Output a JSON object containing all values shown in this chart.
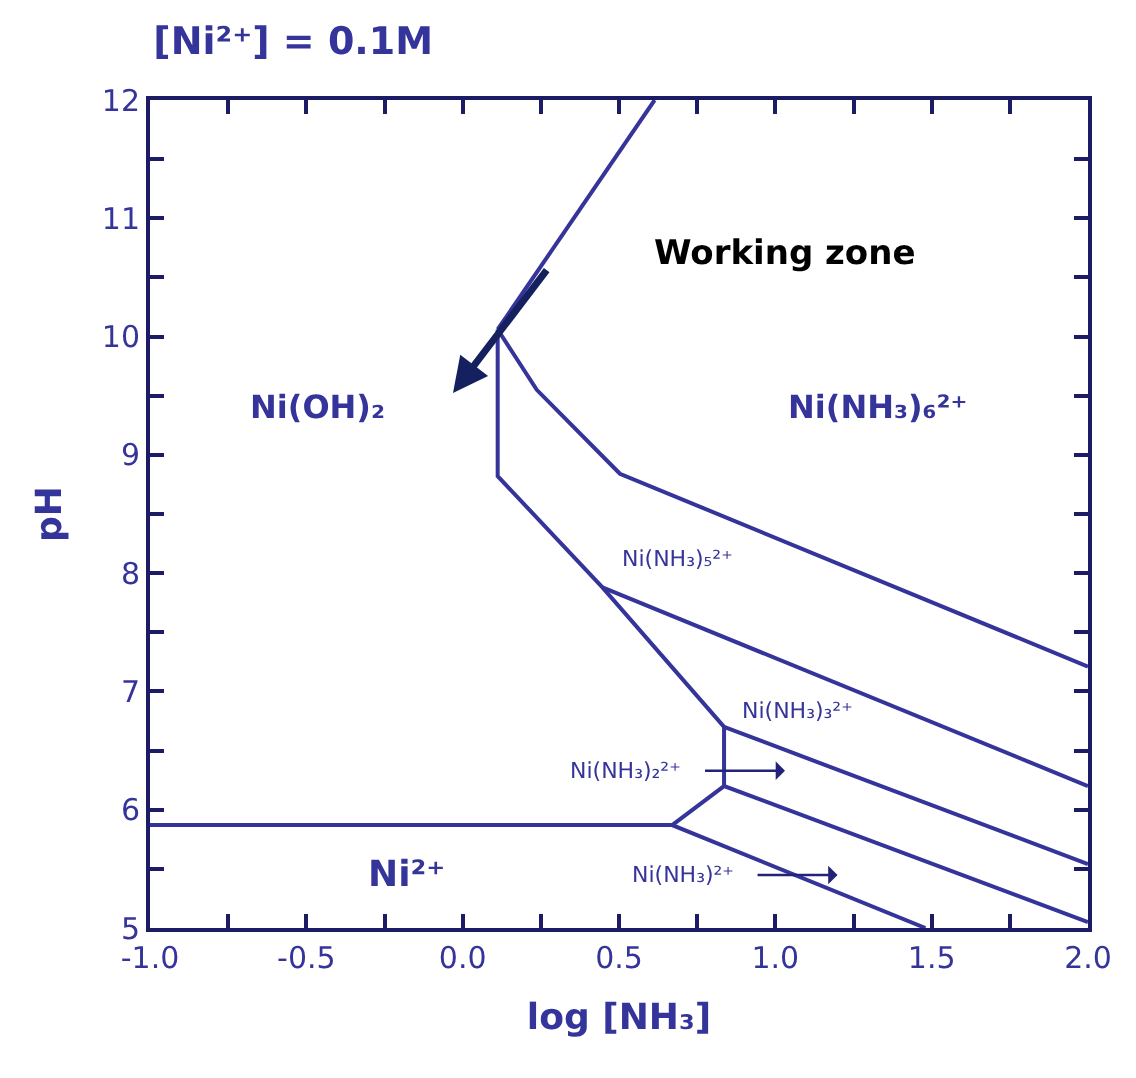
{
  "chart_data": {
    "type": "line",
    "title": "[Ni²⁺] = 0.1M",
    "xlabel": "log [NH₃]",
    "ylabel": "pH",
    "xlim": [
      -1,
      2
    ],
    "ylim": [
      5,
      12
    ],
    "xticks": [
      {
        "value": -1,
        "label": "-1.0"
      },
      {
        "value": -0.75,
        "label": null
      },
      {
        "value": -0.5,
        "label": "-0.5"
      },
      {
        "value": -0.25,
        "label": null
      },
      {
        "value": 0,
        "label": "0.0"
      },
      {
        "value": 0.25,
        "label": null
      },
      {
        "value": 0.5,
        "label": "0.5"
      },
      {
        "value": 0.75,
        "label": null
      },
      {
        "value": 1,
        "label": "1.0"
      },
      {
        "value": 1.25,
        "label": null
      },
      {
        "value": 1.5,
        "label": "1.5"
      },
      {
        "value": 1.75,
        "label": null
      },
      {
        "value": 2,
        "label": "2.0"
      }
    ],
    "yticks": [
      5,
      {
        "value": 5.5,
        "label": null
      },
      6,
      {
        "value": 6.5,
        "label": null
      },
      7,
      {
        "value": 7.5,
        "label": null
      },
      8,
      {
        "value": 8.5,
        "label": null
      },
      9,
      {
        "value": 9.5,
        "label": null
      },
      10,
      {
        "value": 10.5,
        "label": null
      },
      11,
      {
        "value": 11.5,
        "label": null
      },
      12
    ],
    "legend": false,
    "marker": "none",
    "line_style": "solid",
    "series": [
      {
        "color": "#34349a",
        "x": [
          -1,
          0.67,
          1.48
        ],
        "values": [
          5.87,
          5.87,
          5.0
        ]
      },
      {
        "color": "#34349a",
        "x": [
          0.67,
          0.836,
          2
        ],
        "values": [
          5.87,
          6.2,
          5.05
        ]
      },
      {
        "color": "#34349a",
        "x": [
          0.836,
          0.836,
          2
        ],
        "values": [
          6.2,
          6.7,
          5.54
        ]
      },
      {
        "color": "#34349a",
        "x": [
          0.112,
          0.112,
          0.447,
          0.836
        ],
        "values": [
          10.06,
          8.82,
          7.88,
          6.7
        ]
      },
      {
        "color": "#34349a",
        "x": [
          0.447,
          2
        ],
        "values": [
          7.88,
          6.2
        ]
      },
      {
        "color": "#34349a",
        "x": [
          0.112,
          0.237,
          0.503,
          2
        ],
        "values": [
          10.06,
          9.55,
          8.84,
          7.21
        ]
      },
      {
        "color": "#34349a",
        "x": [
          0.112,
          0.614
        ],
        "values": [
          10.06,
          12
        ]
      }
    ],
    "annotations": [
      "Working zone",
      "Ni(OH)₂",
      "Ni(NH₃)₆²⁺",
      "Ni(NH₃)₅²⁺",
      "Ni(NH₃)₃²⁺",
      "Ni(NH₃)₂²⁺",
      "Ni(NH₃)²⁺",
      "Ni²⁺"
    ]
  }
}
